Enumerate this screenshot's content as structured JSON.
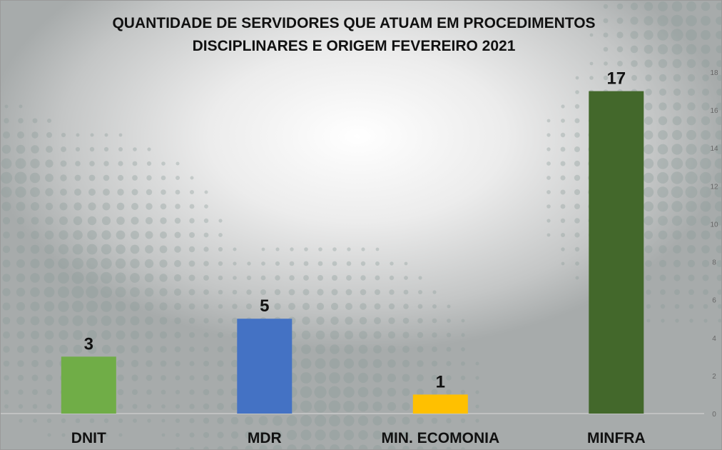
{
  "chart_data": {
    "type": "bar",
    "title": [
      "QUANTIDADE DE SERVIDORES QUE ATUAM EM PROCEDIMENTOS",
      "DISCIPLINARES E ORIGEM FEVEREIRO 2021"
    ],
    "categories": [
      "DNIT",
      "MDR",
      "MIN. ECOMONIA",
      "MINFRA"
    ],
    "values": [
      3,
      5,
      1,
      17
    ],
    "data_labels": [
      "3",
      "5",
      "1",
      "17"
    ],
    "bar_colors": [
      "#70ad47",
      "#4472c4",
      "#ffc000",
      "#43682b"
    ],
    "ylim": [
      0,
      18
    ],
    "yticks": [
      "0",
      "2",
      "4",
      "6",
      "8",
      "10",
      "12",
      "14",
      "16",
      "18"
    ],
    "y_axis_side": "right",
    "grid": false,
    "legend": "none"
  }
}
